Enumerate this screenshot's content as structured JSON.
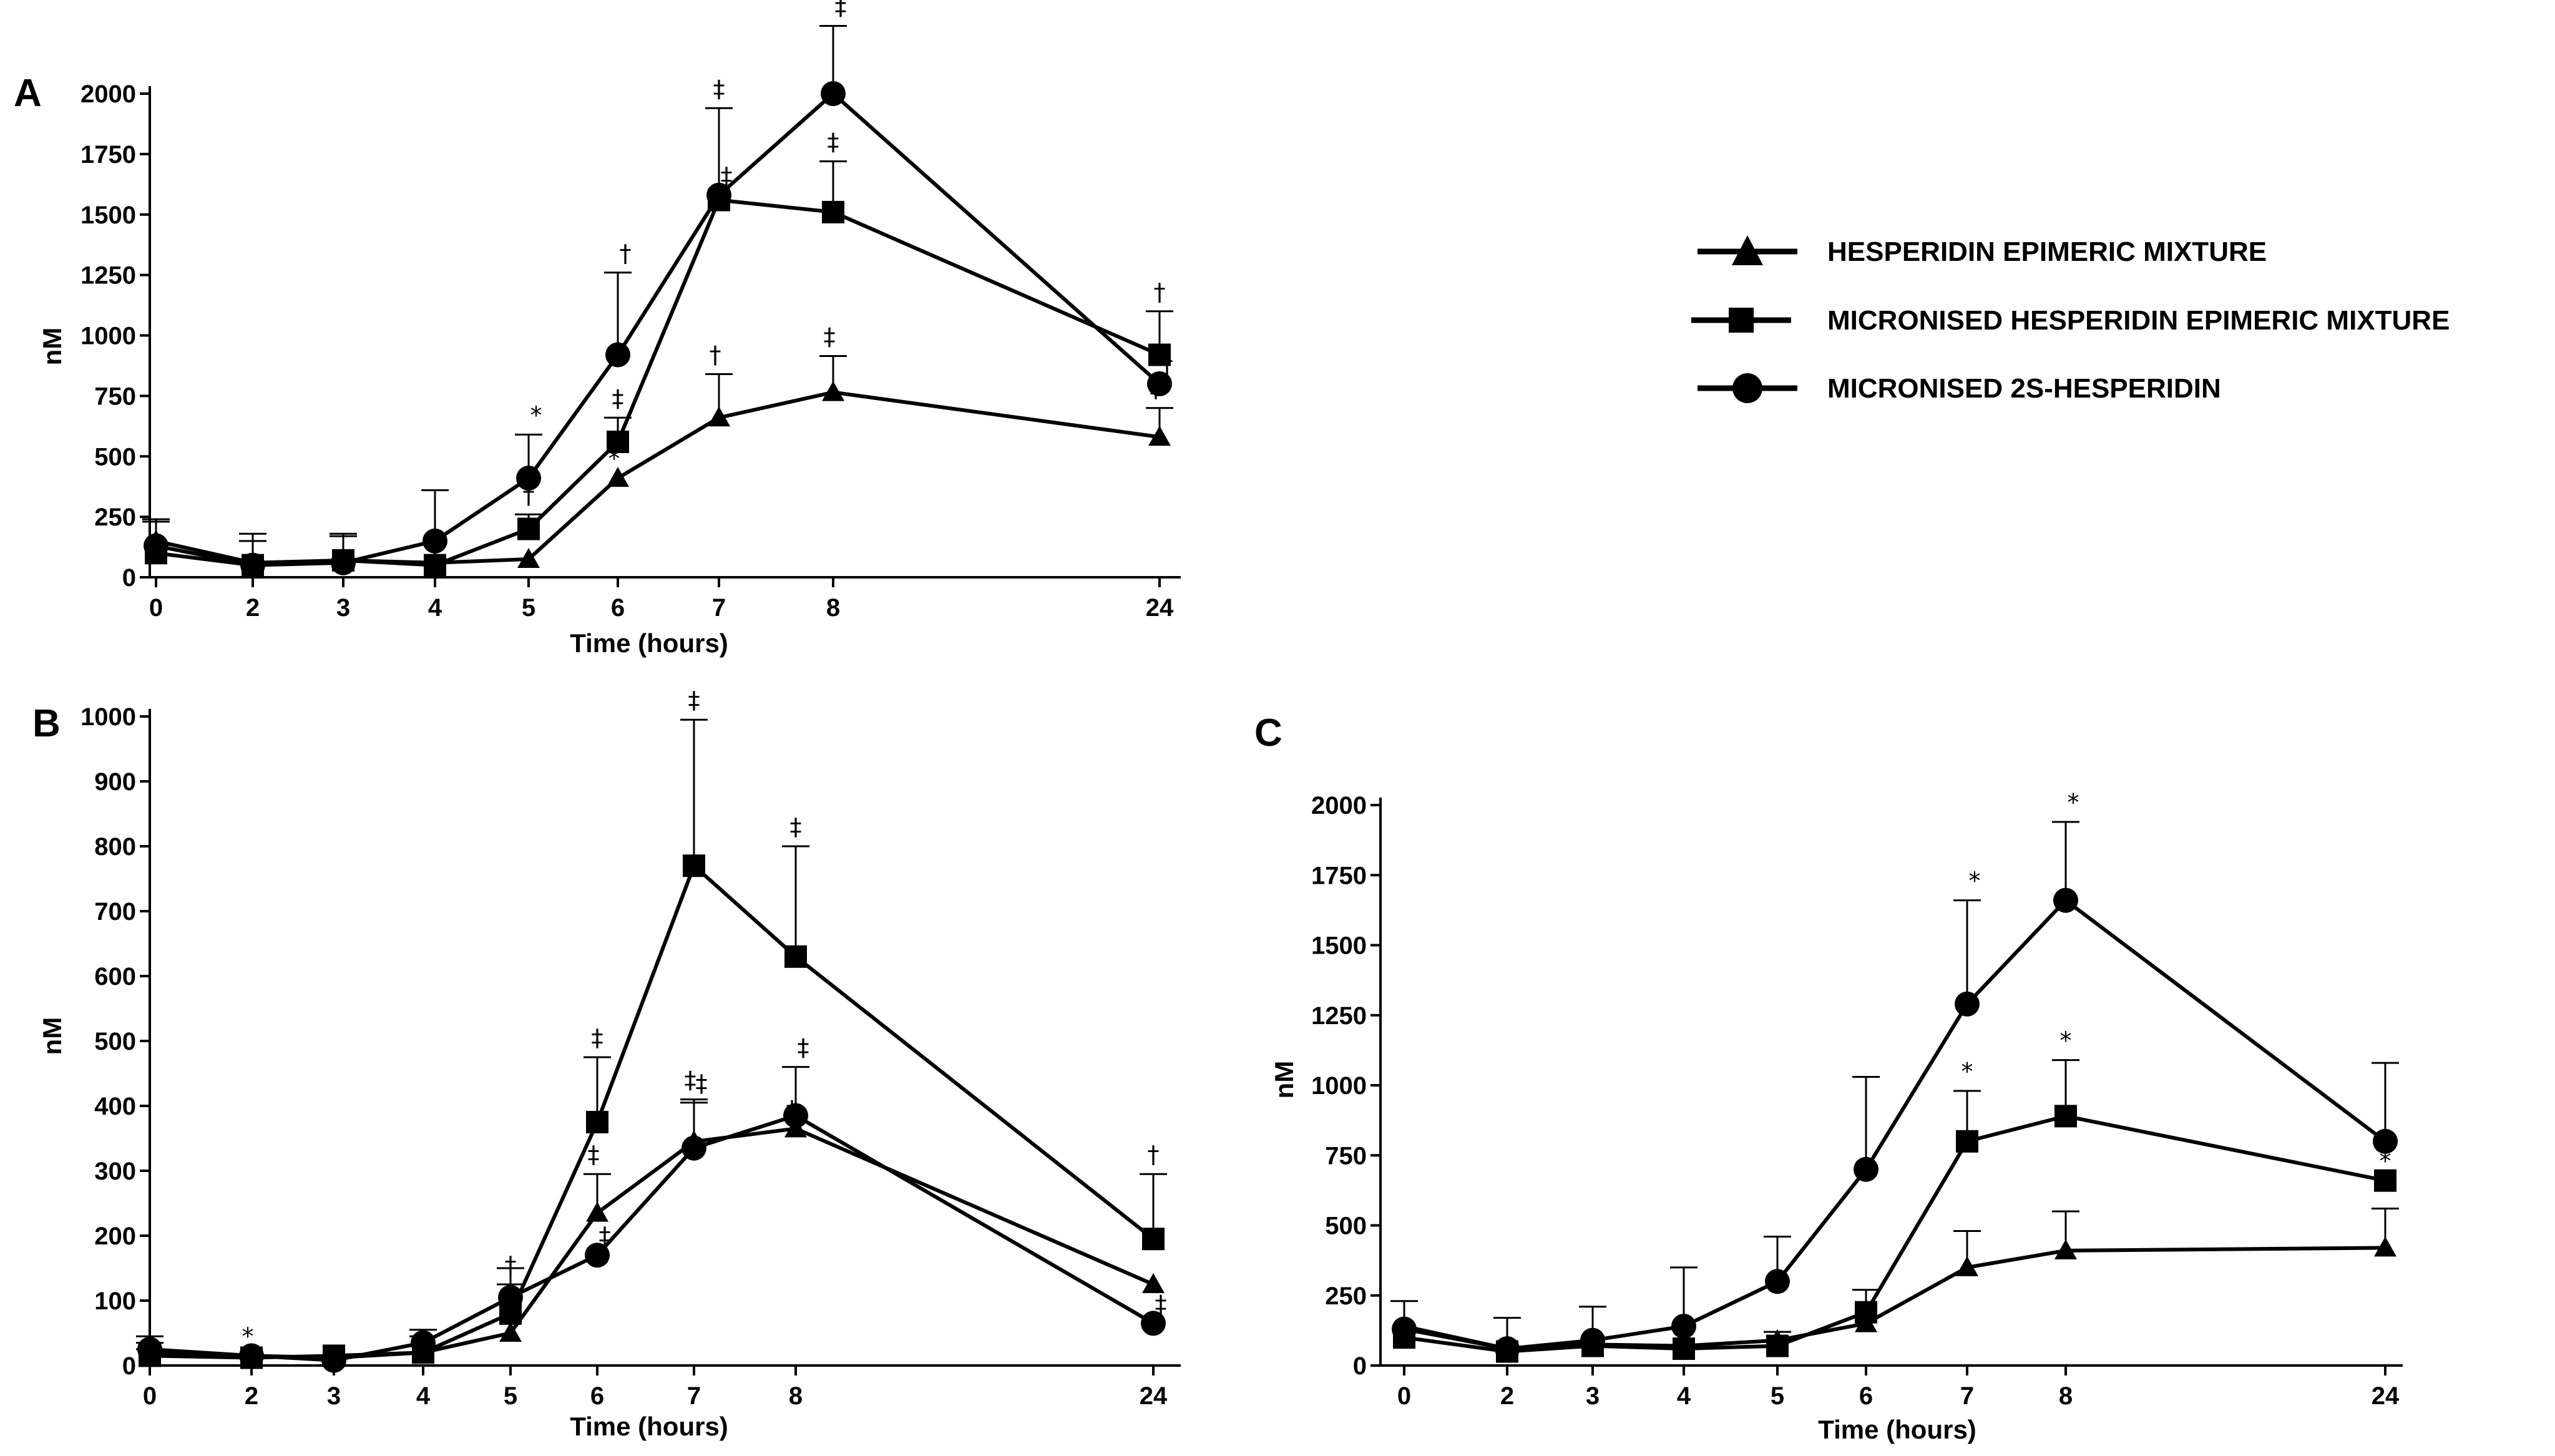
{
  "legend": {
    "items": [
      {
        "label": "HESPERIDIN EPIMERIC MIXTURE",
        "marker": "triangle"
      },
      {
        "label": "MICRONISED HESPERIDIN EPIMERIC MIXTURE",
        "marker": "square"
      },
      {
        "label": "MICRONISED 2S-HESPERIDIN",
        "marker": "circle"
      }
    ]
  },
  "colors": {
    "ink": "#000000",
    "background": "#ffffff"
  },
  "chart_data": [
    {
      "panel": "A",
      "type": "line",
      "xlabel": "Time (hours)",
      "ylabel": "nM",
      "x_tick_labels": [
        "0",
        "2",
        "3",
        "4",
        "5",
        "6",
        "7",
        "8",
        "24"
      ],
      "y_ticks": [
        0,
        250,
        500,
        750,
        1000,
        1250,
        1500,
        1750,
        2000
      ],
      "ylim": [
        0,
        2000
      ],
      "series": [
        {
          "name": "HESPERIDIN EPIMERIC MIXTURE",
          "marker": "triangle",
          "values": [
            150,
            60,
            70,
            60,
            75,
            410,
            660,
            765,
            580
          ],
          "errors": [
            80,
            90,
            100,
            0,
            0,
            0,
            180,
            150,
            120
          ],
          "sig": [
            "",
            "",
            "",
            "",
            "",
            "*",
            "†",
            "‡",
            "‡"
          ]
        },
        {
          "name": "MICRONISED HESPERIDIN EPIMERIC MIXTURE",
          "marker": "square",
          "values": [
            100,
            50,
            70,
            50,
            200,
            560,
            1560,
            1510,
            920
          ],
          "errors": [
            0,
            0,
            0,
            0,
            60,
            100,
            380,
            210,
            180
          ],
          "sig": [
            "",
            "",
            "",
            "",
            "†",
            "‡",
            "‡",
            "‡",
            "†"
          ]
        },
        {
          "name": "MICRONISED 2S-HESPERIDIN",
          "marker": "circle",
          "values": [
            130,
            50,
            60,
            150,
            410,
            920,
            1580,
            2000,
            800
          ],
          "errors": [
            110,
            130,
            120,
            210,
            180,
            340,
            0,
            280,
            0
          ],
          "sig": [
            "",
            "",
            "",
            "",
            "*",
            "†",
            "‡",
            "‡",
            "†"
          ]
        }
      ]
    },
    {
      "panel": "B",
      "type": "line",
      "xlabel": "Time (hours)",
      "ylabel": "nM",
      "x_tick_labels": [
        "0",
        "2",
        "3",
        "4",
        "5",
        "6",
        "7",
        "8",
        "24"
      ],
      "y_ticks": [
        0,
        100,
        200,
        300,
        400,
        500,
        600,
        700,
        800,
        900,
        1000
      ],
      "ylim": [
        0,
        1000
      ],
      "series": [
        {
          "name": "HESPERIDIN EPIMERIC MIXTURE",
          "marker": "triangle",
          "values": [
            20,
            15,
            12,
            20,
            50,
            235,
            345,
            365,
            125
          ],
          "errors": [
            15,
            0,
            0,
            25,
            0,
            60,
            65,
            0,
            0
          ],
          "sig": [
            "",
            "*",
            "",
            "",
            "‡",
            "‡",
            "‡",
            "‡",
            ""
          ]
        },
        {
          "name": "MICRONISED HESPERIDIN EPIMERIC MIXTURE",
          "marker": "square",
          "values": [
            15,
            12,
            15,
            20,
            80,
            375,
            770,
            630,
            195
          ],
          "errors": [
            10,
            0,
            0,
            10,
            45,
            100,
            225,
            170,
            100
          ],
          "sig": [
            "",
            "",
            "",
            "",
            "†",
            "‡",
            "‡",
            "‡",
            "†"
          ]
        },
        {
          "name": "MICRONISED 2S-HESPERIDIN",
          "marker": "circle",
          "values": [
            25,
            15,
            8,
            35,
            105,
            170,
            335,
            385,
            65
          ],
          "errors": [
            20,
            0,
            0,
            20,
            45,
            0,
            70,
            75,
            0
          ],
          "sig": [
            "",
            "",
            "",
            "",
            "",
            "‡",
            "‡",
            "‡",
            "‡"
          ]
        }
      ]
    },
    {
      "panel": "C",
      "type": "line",
      "xlabel": "Time (hours)",
      "ylabel": "nM",
      "x_tick_labels": [
        "0",
        "2",
        "3",
        "4",
        "5",
        "6",
        "7",
        "8",
        "24"
      ],
      "y_ticks": [
        0,
        250,
        500,
        750,
        1000,
        1250,
        1500,
        1750,
        2000
      ],
      "ylim": [
        0,
        2000
      ],
      "series": [
        {
          "name": "HESPERIDIN EPIMERIC MIXTURE",
          "marker": "triangle",
          "values": [
            140,
            60,
            75,
            70,
            90,
            150,
            350,
            410,
            420
          ],
          "errors": [
            0,
            0,
            0,
            0,
            0,
            0,
            130,
            140,
            140
          ],
          "sig": [
            "",
            "",
            "",
            "",
            "",
            "",
            "",
            "",
            "*"
          ]
        },
        {
          "name": "MICRONISED HESPERIDIN EPIMERIC MIXTURE",
          "marker": "square",
          "values": [
            100,
            50,
            70,
            60,
            70,
            190,
            800,
            890,
            660
          ],
          "errors": [
            0,
            0,
            0,
            0,
            50,
            80,
            180,
            200,
            0
          ],
          "sig": [
            "",
            "",
            "",
            "",
            "",
            "",
            "*",
            "*",
            "*"
          ]
        },
        {
          "name": "MICRONISED 2S-HESPERIDIN",
          "marker": "circle",
          "values": [
            130,
            60,
            90,
            140,
            300,
            700,
            1290,
            1660,
            800
          ],
          "errors": [
            100,
            110,
            120,
            210,
            160,
            330,
            370,
            280,
            280
          ],
          "sig": [
            "",
            "",
            "",
            "",
            "",
            "",
            "*",
            "*",
            ""
          ]
        }
      ]
    }
  ]
}
